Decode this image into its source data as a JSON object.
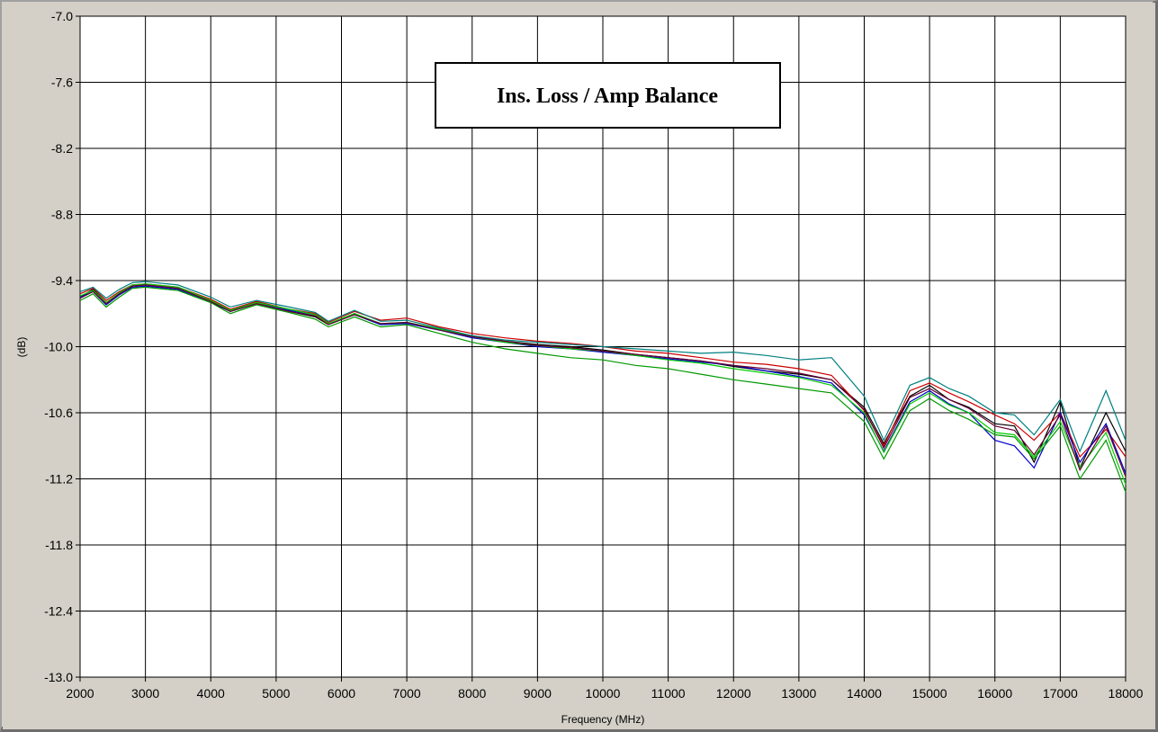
{
  "chart_data": {
    "type": "line",
    "title": "Ins. Loss / Amp Balance",
    "xlabel": "Frequency (MHz)",
    "ylabel": "(dB)",
    "xlim": [
      2000,
      18000
    ],
    "ylim": [
      -13.0,
      -7.0
    ],
    "x_ticks": [
      "2000",
      "3000",
      "4000",
      "5000",
      "6000",
      "7000",
      "8000",
      "9000",
      "10000",
      "11000",
      "12000",
      "13000",
      "14000",
      "15000",
      "16000",
      "17000",
      "18000"
    ],
    "y_ticks": [
      "-7.0",
      "-7.6",
      "-8.2",
      "-8.8",
      "-9.4",
      "-10.0",
      "-10.6",
      "-11.2",
      "-11.8",
      "-12.4",
      "-13.0"
    ],
    "grid": true,
    "x": [
      2000,
      2200,
      2400,
      2600,
      2800,
      3000,
      3500,
      4000,
      4300,
      4700,
      5200,
      5600,
      5800,
      6200,
      6600,
      7000,
      7500,
      8000,
      8500,
      9000,
      9500,
      10000,
      10500,
      11000,
      11500,
      12000,
      12500,
      13000,
      13500,
      14000,
      14300,
      14700,
      15000,
      15300,
      15600,
      16000,
      16300,
      16600,
      17000,
      17300,
      17700,
      18000
    ],
    "series": [
      {
        "color": "#000000",
        "values": [
          -9.55,
          -9.48,
          -9.6,
          -9.52,
          -9.45,
          -9.44,
          -9.47,
          -9.58,
          -9.67,
          -9.6,
          -9.68,
          -9.73,
          -9.8,
          -9.7,
          -9.8,
          -9.78,
          -9.84,
          -9.9,
          -9.95,
          -9.98,
          -10.0,
          -10.03,
          -10.07,
          -10.1,
          -10.13,
          -10.18,
          -10.22,
          -10.25,
          -10.3,
          -10.55,
          -10.88,
          -10.45,
          -10.35,
          -10.48,
          -10.55,
          -10.7,
          -10.72,
          -11.05,
          -10.5,
          -11.1,
          -10.6,
          -10.95
        ]
      },
      {
        "color": "#cc0000",
        "values": [
          -9.52,
          -9.47,
          -9.58,
          -9.5,
          -9.44,
          -9.43,
          -9.46,
          -9.57,
          -9.66,
          -9.59,
          -9.66,
          -9.7,
          -9.78,
          -9.68,
          -9.76,
          -9.74,
          -9.82,
          -9.88,
          -9.92,
          -9.95,
          -9.97,
          -10.0,
          -10.04,
          -10.06,
          -10.1,
          -10.14,
          -10.16,
          -10.2,
          -10.26,
          -10.58,
          -10.9,
          -10.4,
          -10.33,
          -10.42,
          -10.5,
          -10.62,
          -10.7,
          -10.85,
          -10.6,
          -11.0,
          -10.75,
          -11.0
        ]
      },
      {
        "color": "#0000cc",
        "values": [
          -9.55,
          -9.5,
          -9.62,
          -9.53,
          -9.46,
          -9.45,
          -9.48,
          -9.6,
          -9.68,
          -9.61,
          -9.67,
          -9.72,
          -9.79,
          -9.71,
          -9.8,
          -9.79,
          -9.85,
          -9.92,
          -9.96,
          -10.0,
          -10.02,
          -10.05,
          -10.08,
          -10.11,
          -10.14,
          -10.17,
          -10.22,
          -10.27,
          -10.33,
          -10.62,
          -10.95,
          -10.5,
          -10.4,
          -10.52,
          -10.6,
          -10.85,
          -10.9,
          -11.1,
          -10.6,
          -11.05,
          -10.7,
          -11.15
        ]
      },
      {
        "color": "#008080",
        "values": [
          -9.5,
          -9.46,
          -9.56,
          -9.48,
          -9.42,
          -9.41,
          -9.44,
          -9.55,
          -9.64,
          -9.58,
          -9.64,
          -9.69,
          -9.77,
          -9.67,
          -9.77,
          -9.76,
          -9.83,
          -9.9,
          -9.94,
          -9.96,
          -9.98,
          -10.0,
          -10.02,
          -10.04,
          -10.06,
          -10.05,
          -10.08,
          -10.12,
          -10.1,
          -10.45,
          -10.85,
          -10.35,
          -10.28,
          -10.38,
          -10.45,
          -10.6,
          -10.62,
          -10.8,
          -10.48,
          -10.95,
          -10.4,
          -10.85
        ]
      },
      {
        "color": "#009900",
        "values": [
          -9.58,
          -9.52,
          -9.64,
          -9.55,
          -9.47,
          -9.46,
          -9.49,
          -9.6,
          -9.7,
          -9.62,
          -9.69,
          -9.75,
          -9.82,
          -9.73,
          -9.82,
          -9.8,
          -9.88,
          -9.96,
          -10.02,
          -10.06,
          -10.1,
          -10.12,
          -10.17,
          -10.2,
          -10.25,
          -10.3,
          -10.34,
          -10.38,
          -10.42,
          -10.68,
          -11.02,
          -10.58,
          -10.47,
          -10.58,
          -10.66,
          -10.8,
          -10.82,
          -11.02,
          -10.72,
          -11.2,
          -10.85,
          -11.32
        ]
      },
      {
        "color": "#00cc00",
        "values": [
          -9.54,
          -9.49,
          -9.6,
          -9.51,
          -9.44,
          -9.43,
          -9.46,
          -9.58,
          -9.67,
          -9.6,
          -9.66,
          -9.71,
          -9.79,
          -9.7,
          -9.79,
          -9.78,
          -9.84,
          -9.91,
          -9.96,
          -9.99,
          -10.02,
          -10.04,
          -10.08,
          -10.12,
          -10.15,
          -10.2,
          -10.24,
          -10.28,
          -10.35,
          -10.6,
          -10.96,
          -10.52,
          -10.42,
          -10.53,
          -10.6,
          -10.78,
          -10.8,
          -11.0,
          -10.68,
          -11.1,
          -10.78,
          -11.25
        ]
      },
      {
        "color": "#660033",
        "values": [
          -9.56,
          -9.5,
          -9.61,
          -9.52,
          -9.45,
          -9.44,
          -9.47,
          -9.59,
          -9.68,
          -9.61,
          -9.68,
          -9.72,
          -9.8,
          -9.71,
          -9.79,
          -9.78,
          -9.85,
          -9.91,
          -9.95,
          -9.99,
          -10.01,
          -10.04,
          -10.07,
          -10.1,
          -10.13,
          -10.17,
          -10.2,
          -10.24,
          -10.3,
          -10.57,
          -10.92,
          -10.46,
          -10.38,
          -10.48,
          -10.56,
          -10.72,
          -10.76,
          -10.98,
          -10.62,
          -11.12,
          -10.72,
          -11.18
        ]
      }
    ]
  }
}
